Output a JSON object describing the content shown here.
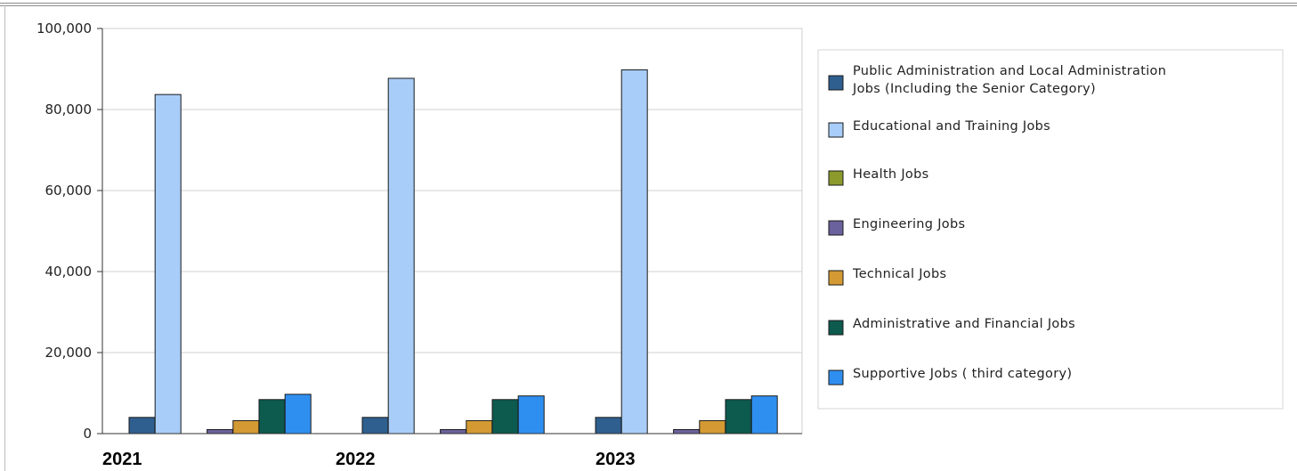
{
  "chart_data": {
    "type": "bar",
    "title": "",
    "xlabel": "",
    "ylabel": "",
    "categories": [
      "2021",
      "2022",
      "2023"
    ],
    "ylim": [
      0,
      100000
    ],
    "yticks": [
      "0",
      "20,000",
      "40,000",
      "60,000",
      "80,000",
      "100,000"
    ],
    "grid": true,
    "legend_position": "right",
    "series": [
      {
        "name": "Public Administration and Local Administration Jobs (Including the Senior Category)",
        "color": "#2e5f8e",
        "values": [
          4000,
          4000,
          4000
        ]
      },
      {
        "name": "Educational and Training Jobs",
        "color": "#a8cdf8",
        "values": [
          83700,
          87700,
          89800
        ]
      },
      {
        "name": "Health Jobs",
        "color": "#8c9a2c",
        "values": [
          0,
          0,
          0
        ]
      },
      {
        "name": "Engineering Jobs",
        "color": "#6a629c",
        "values": [
          1000,
          1000,
          1000
        ]
      },
      {
        "name": "Technical Jobs",
        "color": "#d39a33",
        "values": [
          3200,
          3200,
          3200
        ]
      },
      {
        "name": "Administrative and Financial Jobs",
        "color": "#0d5a4e",
        "values": [
          8400,
          8400,
          8400
        ]
      },
      {
        "name": "Supportive Jobs ( third category)",
        "color": "#2f8ff0",
        "values": [
          9700,
          9300,
          9300
        ]
      }
    ]
  }
}
